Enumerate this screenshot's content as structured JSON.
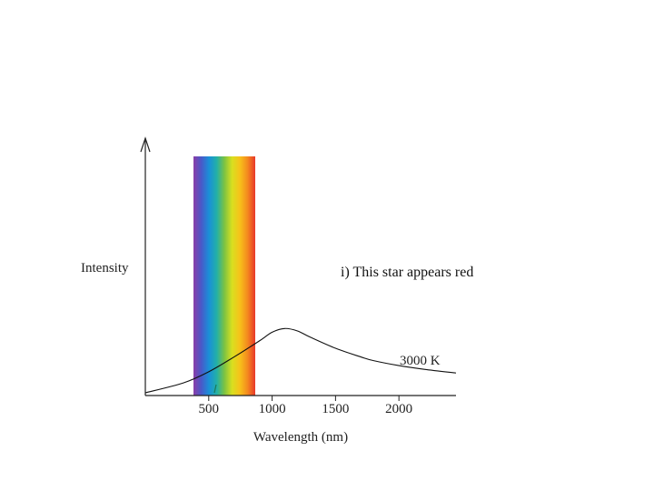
{
  "chart_data": {
    "type": "line",
    "title": "",
    "xlabel": "Wavelength (nm)",
    "ylabel": "Intensity",
    "xlim": [
      0,
      2450
    ],
    "ylim": [
      0,
      1
    ],
    "grid": false,
    "x_ticks": [
      500,
      1000,
      1500,
      2000
    ],
    "x_tick_labels": [
      "500",
      "1000",
      "1500",
      "2000"
    ],
    "visible_band": {
      "range_nm": [
        380,
        750
      ],
      "colors": [
        "#8a3ea8",
        "#4a58c8",
        "#1a8fd8",
        "#22b0a8",
        "#7cc242",
        "#d8e020",
        "#f7c21a",
        "#f48a1e",
        "#e8382a"
      ]
    },
    "series": [
      {
        "name": "3000 K",
        "x": [
          0,
          300,
          500,
          700,
          900,
          1000,
          1100,
          1200,
          1300,
          1500,
          1700,
          1800,
          2000,
          2200,
          2450
        ],
        "values": [
          0,
          0.08,
          0.17,
          0.29,
          0.42,
          0.49,
          0.52,
          0.5,
          0.45,
          0.36,
          0.29,
          0.26,
          0.22,
          0.19,
          0.16
        ],
        "color": "#111111"
      }
    ],
    "annotations": [
      {
        "text": "i) This star appears red"
      },
      {
        "text": "3000 K"
      }
    ]
  }
}
